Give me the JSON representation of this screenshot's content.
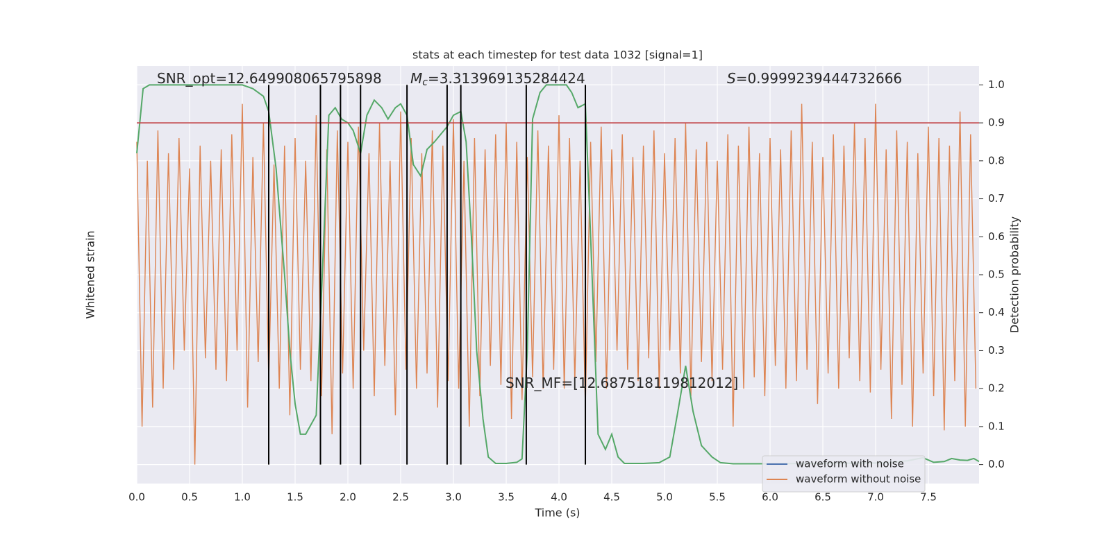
{
  "chart_data": {
    "type": "line",
    "title": "stats at each timestep for test data 1032 [signal=1]",
    "xlabel": "Time (s)",
    "ylabel": "Whitened strain",
    "y2label": "Detection probability",
    "xlim": [
      0,
      7.98
    ],
    "y2lim": [
      -0.05,
      1.05
    ],
    "xticks": [
      {
        "value": 0,
        "label": "0.0"
      },
      {
        "value": 0.5,
        "label": "0.5"
      },
      {
        "value": 1,
        "label": "1.0"
      },
      {
        "value": 1.5,
        "label": "1.5"
      },
      {
        "value": 2,
        "label": "2.0"
      },
      {
        "value": 2.5,
        "label": "2.5"
      },
      {
        "value": 3,
        "label": "3.0"
      },
      {
        "value": 3.5,
        "label": "3.5"
      },
      {
        "value": 4,
        "label": "4.0"
      },
      {
        "value": 4.5,
        "label": "4.5"
      },
      {
        "value": 5,
        "label": "5.0"
      },
      {
        "value": 5.5,
        "label": "5.5"
      },
      {
        "value": 6,
        "label": "6.0"
      },
      {
        "value": 6.5,
        "label": "6.5"
      },
      {
        "value": 7,
        "label": "7.0"
      },
      {
        "value": 7.5,
        "label": "7.5"
      }
    ],
    "y2ticks": [
      {
        "value": 0,
        "label": "0.0"
      },
      {
        "value": 0.1,
        "label": "0.1"
      },
      {
        "value": 0.2,
        "label": "0.2"
      },
      {
        "value": 0.3,
        "label": "0.3"
      },
      {
        "value": 0.4,
        "label": "0.4"
      },
      {
        "value": 0.5,
        "label": "0.5"
      },
      {
        "value": 0.6,
        "label": "0.6"
      },
      {
        "value": 0.7,
        "label": "0.7"
      },
      {
        "value": 0.8,
        "label": "0.8"
      },
      {
        "value": 0.9,
        "label": "0.9"
      },
      {
        "value": 1,
        "label": "1.0"
      }
    ],
    "grid": true,
    "legend": "lower right",
    "series": [
      {
        "name": "waveform with noise",
        "color": "#4c72b0"
      },
      {
        "name": "waveform without noise",
        "color": "#dd8452",
        "axis": "y2",
        "x": [
          0,
          0.05,
          0.1,
          0.15,
          0.2,
          0.25,
          0.3,
          0.35,
          0.4,
          0.45,
          0.5,
          0.55,
          0.6,
          0.65,
          0.7,
          0.75,
          0.8,
          0.85,
          0.9,
          0.95,
          1,
          1.05,
          1.1,
          1.15,
          1.2,
          1.25,
          1.3,
          1.35,
          1.4,
          1.45,
          1.5,
          1.55,
          1.6,
          1.65,
          1.7,
          1.75,
          1.8,
          1.85,
          1.9,
          1.95,
          2,
          2.05,
          2.1,
          2.15,
          2.2,
          2.25,
          2.3,
          2.35,
          2.4,
          2.45,
          2.5,
          2.55,
          2.6,
          2.65,
          2.7,
          2.75,
          2.8,
          2.85,
          2.9,
          2.95,
          3,
          3.05,
          3.1,
          3.15,
          3.2,
          3.25,
          3.3,
          3.35,
          3.4,
          3.45,
          3.5,
          3.55,
          3.6,
          3.65,
          3.7,
          3.75,
          3.8,
          3.85,
          3.9,
          3.95,
          4,
          4.05,
          4.1,
          4.15,
          4.2,
          4.25,
          4.3,
          4.35,
          4.4,
          4.45,
          4.5,
          4.55,
          4.6,
          4.65,
          4.7,
          4.75,
          4.8,
          4.85,
          4.9,
          4.95,
          5,
          5.05,
          5.1,
          5.15,
          5.2,
          5.25,
          5.3,
          5.35,
          5.4,
          5.45,
          5.5,
          5.55,
          5.6,
          5.65,
          5.7,
          5.75,
          5.8,
          5.85,
          5.9,
          5.95,
          6,
          6.05,
          6.1,
          6.15,
          6.2,
          6.25,
          6.3,
          6.35,
          6.4,
          6.45,
          6.5,
          6.55,
          6.6,
          6.65,
          6.7,
          6.75,
          6.8,
          6.85,
          6.9,
          6.95,
          7,
          7.05,
          7.1,
          7.15,
          7.2,
          7.25,
          7.3,
          7.35,
          7.4,
          7.45,
          7.5,
          7.55,
          7.6,
          7.65,
          7.7,
          7.75,
          7.8,
          7.85,
          7.9,
          7.95
        ],
        "values": [
          0.85,
          0.1,
          0.8,
          0.15,
          0.88,
          0.2,
          0.82,
          0.25,
          0.86,
          0.3,
          0.78,
          0.0,
          0.84,
          0.28,
          0.8,
          0.25,
          0.83,
          0.22,
          0.87,
          0.3,
          0.95,
          0.15,
          0.81,
          0.27,
          0.9,
          0.22,
          0.79,
          0.2,
          0.84,
          0.13,
          0.86,
          0.25,
          0.8,
          0.22,
          0.92,
          0.18,
          0.83,
          0.08,
          0.88,
          0.24,
          0.85,
          0.2,
          0.89,
          0.3,
          0.82,
          0.18,
          0.9,
          0.26,
          0.8,
          0.13,
          0.93,
          0.25,
          0.86,
          0.2,
          0.82,
          0.24,
          0.88,
          0.15,
          0.84,
          0.22,
          0.91,
          0.2,
          0.8,
          0.1,
          0.86,
          0.18,
          0.83,
          0.26,
          0.87,
          0.21,
          0.9,
          0.12,
          0.85,
          0.17,
          0.81,
          0.23,
          0.88,
          0.2,
          0.84,
          0.25,
          0.92,
          0.2,
          0.86,
          0.22,
          0.8,
          0.15,
          0.85,
          0.27,
          0.89,
          0.2,
          0.83,
          0.3,
          0.87,
          0.25,
          0.81,
          0.22,
          0.84,
          0.28,
          0.88,
          0.2,
          0.82,
          0.3,
          0.86,
          0.24,
          0.9,
          0.18,
          0.83,
          0.27,
          0.85,
          0.22,
          0.8,
          0.25,
          0.87,
          0.1,
          0.84,
          0.2,
          0.89,
          0.23,
          0.82,
          0.18,
          0.86,
          0.26,
          0.83,
          0.2,
          0.88,
          0.22,
          0.95,
          0.25,
          0.85,
          0.16,
          0.81,
          0.24,
          0.87,
          0.2,
          0.84,
          0.28,
          0.9,
          0.22,
          0.86,
          0.19,
          0.95,
          0.25,
          0.83,
          0.12,
          0.88,
          0.21,
          0.85,
          0.1,
          0.82,
          0.24,
          0.89,
          0.18,
          0.86,
          0.09,
          0.84,
          0.22,
          0.93,
          0.1,
          0.87,
          0.2
        ]
      },
      {
        "name": "detection probability",
        "legend": false,
        "color": "#55a868",
        "axis": "y2",
        "x": [
          0,
          0.06,
          0.12,
          0.3,
          0.5,
          0.7,
          0.9,
          1.0,
          1.1,
          1.2,
          1.25,
          1.32,
          1.4,
          1.45,
          1.5,
          1.55,
          1.6,
          1.7,
          1.75,
          1.82,
          1.88,
          1.94,
          2.0,
          2.05,
          2.12,
          2.18,
          2.25,
          2.32,
          2.38,
          2.45,
          2.5,
          2.56,
          2.62,
          2.69,
          2.75,
          2.82,
          2.88,
          2.94,
          3.0,
          3.07,
          3.12,
          3.17,
          3.22,
          3.28,
          3.33,
          3.4,
          3.5,
          3.6,
          3.65,
          3.7,
          3.75,
          3.82,
          3.88,
          4.0,
          4.07,
          4.12,
          4.18,
          4.25,
          4.3,
          4.37,
          4.44,
          4.5,
          4.56,
          4.62,
          4.8,
          4.95,
          5.05,
          5.12,
          5.2,
          5.27,
          5.35,
          5.45,
          5.53,
          5.65,
          6.0,
          6.5,
          7.0,
          7.15,
          7.3,
          7.45,
          7.55,
          7.65,
          7.72,
          7.8,
          7.87,
          7.93,
          7.98
        ],
        "values": [
          0.82,
          0.99,
          1.0,
          1.0,
          1.0,
          1.0,
          1.0,
          1.0,
          0.99,
          0.97,
          0.93,
          0.78,
          0.5,
          0.3,
          0.16,
          0.08,
          0.08,
          0.13,
          0.45,
          0.92,
          0.94,
          0.91,
          0.9,
          0.88,
          0.82,
          0.92,
          0.96,
          0.94,
          0.91,
          0.94,
          0.95,
          0.92,
          0.79,
          0.76,
          0.83,
          0.85,
          0.87,
          0.89,
          0.92,
          0.93,
          0.85,
          0.6,
          0.3,
          0.12,
          0.02,
          0.003,
          0.003,
          0.006,
          0.015,
          0.3,
          0.91,
          0.98,
          1.0,
          1.0,
          1.0,
          0.98,
          0.94,
          0.95,
          0.6,
          0.08,
          0.04,
          0.08,
          0.02,
          0.003,
          0.003,
          0.005,
          0.02,
          0.13,
          0.26,
          0.14,
          0.05,
          0.02,
          0.005,
          0.002,
          0.002,
          0.003,
          0.004,
          0.006,
          0.01,
          0.018,
          0.006,
          0.008,
          0.016,
          0.012,
          0.011,
          0.016,
          0.008
        ]
      }
    ],
    "threshold": {
      "value": 0.9,
      "color": "#c44e52"
    },
    "vlines": {
      "x": [
        1.25,
        1.74,
        1.93,
        2.12,
        2.56,
        2.94,
        3.07,
        3.69,
        4.25
      ],
      "ymin": 0,
      "ymax": 1,
      "color": "#000000"
    },
    "annotations": [
      {
        "text": "SNR_opt=12.649908065795898"
      },
      {
        "symbol": "M",
        "subscript": "c",
        "text": "=3.313969135284424"
      },
      {
        "symbol": "S",
        "text": "=0.9999239444732666"
      },
      {
        "text": "SNR_MF=[12.687518119812012]"
      }
    ]
  }
}
